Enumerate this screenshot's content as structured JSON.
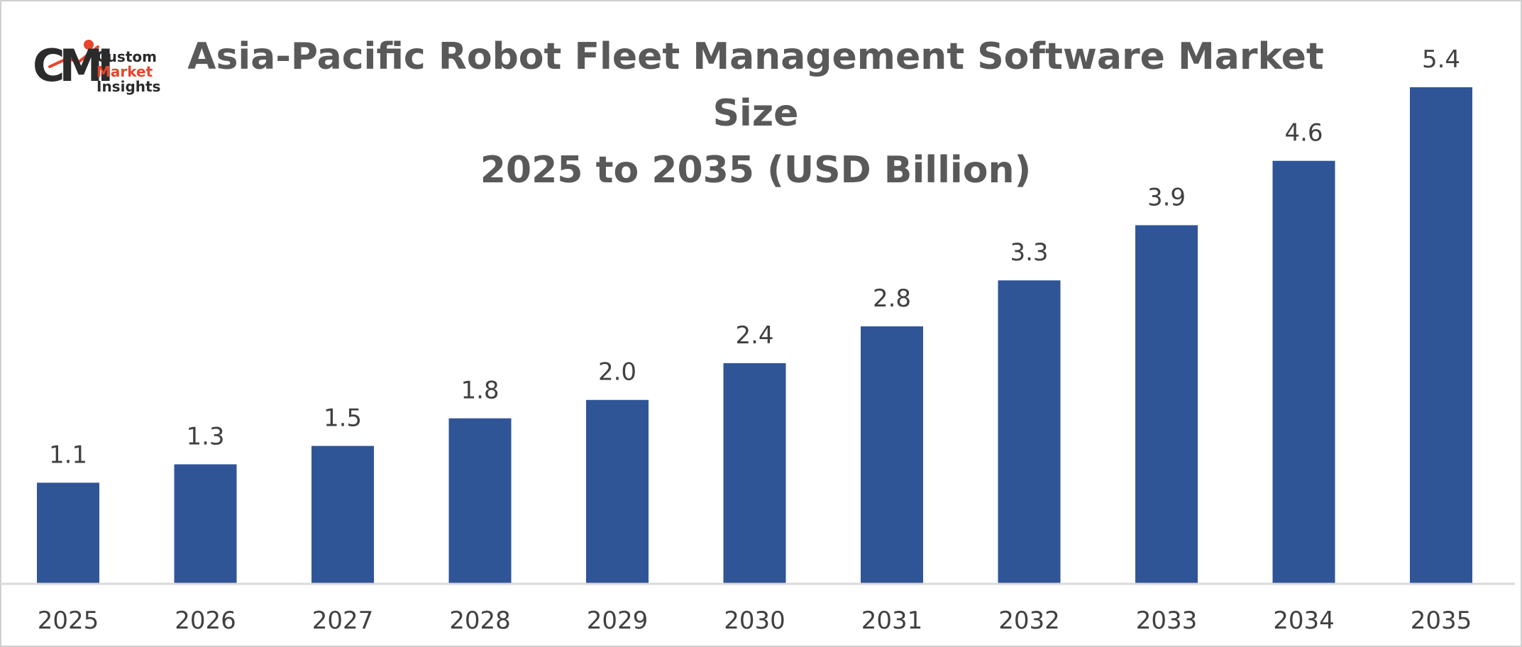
{
  "logo": {
    "mark": "CMI",
    "line1": "Custom",
    "line2": "Market",
    "line3": "Insights",
    "accent_color": "#e8452c"
  },
  "chart_data": {
    "type": "bar",
    "title_line1": "Asia-Pacific Robot Fleet Management Software Market Size",
    "title_line2": "2025 to 2035 (USD Billion)",
    "xlabel": "",
    "ylabel": "",
    "categories": [
      "2025",
      "2026",
      "2027",
      "2028",
      "2029",
      "2030",
      "2031",
      "2032",
      "2033",
      "2034",
      "2035"
    ],
    "values": [
      1.1,
      1.3,
      1.5,
      1.8,
      2.0,
      2.4,
      2.8,
      3.3,
      3.9,
      4.6,
      5.4
    ],
    "value_labels": [
      "1.1",
      "1.3",
      "1.5",
      "1.8",
      "2.0",
      "2.4",
      "2.8",
      "3.3",
      "3.9",
      "4.6",
      "5.4"
    ],
    "ylim": [
      0,
      5.4
    ],
    "bar_color": "#2f5597",
    "grid": false,
    "legend": "none"
  }
}
